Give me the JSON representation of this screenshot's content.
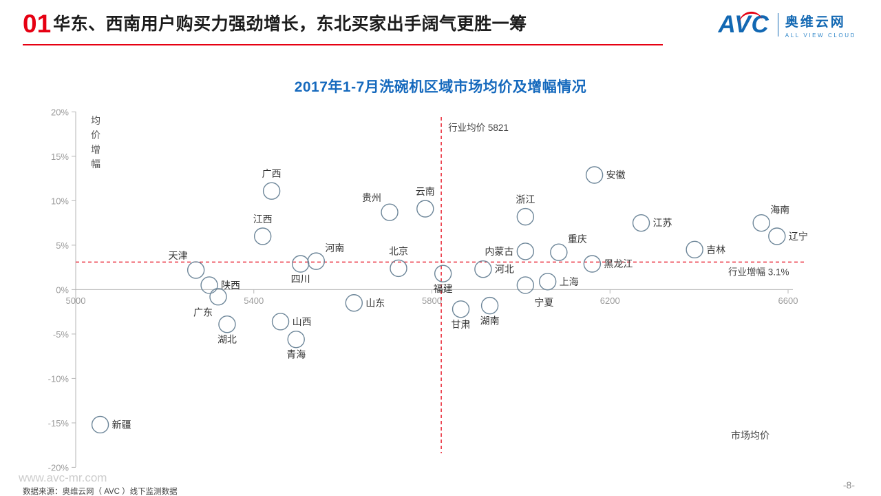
{
  "header": {
    "number": "01",
    "title": "华东、西南用户购买力强劲增长，东北买家出手阔气更胜一筹",
    "accent_color": "#e60012"
  },
  "logo": {
    "avc": "AVC",
    "name": "奥维云网",
    "subtitle": "ALL VIEW CLOUD",
    "color": "#1268b3"
  },
  "chart_title": "2017年1-7月洗碗机区域市场均价及增幅情况",
  "footer": {
    "watermark": "www.avc-mr.com",
    "source": "数据来源：奥维云网（ AVC ）线下监测数据",
    "page": "-8-"
  },
  "chart_data": {
    "type": "scatter",
    "title": "2017年1-7月洗碗机区域市场均价及增幅情况",
    "xlabel": "市场均价",
    "ylabel": "均价增幅",
    "xlim": [
      5000,
      6600
    ],
    "ylim": [
      -20,
      20
    ],
    "x_ticks": [
      5000,
      5400,
      5800,
      6200,
      6600
    ],
    "y_ticks_percent": [
      20,
      15,
      10,
      5,
      0,
      -5,
      -10,
      -15,
      -20
    ],
    "grid": false,
    "point_color": "#6d8699",
    "ref_color": "#e60012",
    "ref_lines": {
      "industry_avg_price": {
        "value": 5821,
        "label": "行业均价 5821"
      },
      "industry_growth": {
        "value": 3.1,
        "label": "行业增幅 3.1%"
      }
    },
    "points": [
      {
        "name": "新疆",
        "price": 5055,
        "growth": -15.2,
        "lp": "right"
      },
      {
        "name": "天津",
        "price": 5270,
        "growth": 2.2,
        "lp": "above-left"
      },
      {
        "name": "陕西",
        "price": 5300,
        "growth": 0.5,
        "lp": "right"
      },
      {
        "name": "广东",
        "price": 5320,
        "growth": -0.8,
        "lp": "below-left"
      },
      {
        "name": "湖北",
        "price": 5340,
        "growth": -3.9,
        "lp": "below"
      },
      {
        "name": "江西",
        "price": 5420,
        "growth": 6.0,
        "lp": "above"
      },
      {
        "name": "广西",
        "price": 5440,
        "growth": 11.1,
        "lp": "above"
      },
      {
        "name": "山西",
        "price": 5460,
        "growth": -3.6,
        "lp": "right"
      },
      {
        "name": "青海",
        "price": 5495,
        "growth": -5.6,
        "lp": "below"
      },
      {
        "name": "四川",
        "price": 5505,
        "growth": 2.9,
        "lp": "below"
      },
      {
        "name": "河南",
        "price": 5540,
        "growth": 3.2,
        "lp": "above-right"
      },
      {
        "name": "山东",
        "price": 5625,
        "growth": -1.5,
        "lp": "right"
      },
      {
        "name": "贵州",
        "price": 5705,
        "growth": 8.7,
        "lp": "above-left"
      },
      {
        "name": "北京",
        "price": 5725,
        "growth": 2.4,
        "lp": "above"
      },
      {
        "name": "云南",
        "price": 5785,
        "growth": 9.1,
        "lp": "above"
      },
      {
        "name": "福建",
        "price": 5825,
        "growth": 1.8,
        "lp": "below"
      },
      {
        "name": "甘肃",
        "price": 5865,
        "growth": -2.2,
        "lp": "below"
      },
      {
        "name": "河北",
        "price": 5915,
        "growth": 2.3,
        "lp": "right"
      },
      {
        "name": "湖南",
        "price": 5930,
        "growth": -1.8,
        "lp": "below"
      },
      {
        "name": "浙江",
        "price": 6010,
        "growth": 8.2,
        "lp": "above"
      },
      {
        "name": "内蒙古",
        "price": 6010,
        "growth": 4.3,
        "lp": "left"
      },
      {
        "name": "宁夏",
        "price": 6010,
        "growth": 0.5,
        "lp": "below-right"
      },
      {
        "name": "上海",
        "price": 6060,
        "growth": 0.9,
        "lp": "right"
      },
      {
        "name": "重庆",
        "price": 6085,
        "growth": 4.2,
        "lp": "above-right"
      },
      {
        "name": "黑龙江",
        "price": 6160,
        "growth": 2.9,
        "lp": "right"
      },
      {
        "name": "安徽",
        "price": 6165,
        "growth": 12.9,
        "lp": "right"
      },
      {
        "name": "江苏",
        "price": 6270,
        "growth": 7.5,
        "lp": "right"
      },
      {
        "name": "吉林",
        "price": 6390,
        "growth": 4.5,
        "lp": "right"
      },
      {
        "name": "海南",
        "price": 6540,
        "growth": 7.5,
        "lp": "above-right"
      },
      {
        "name": "辽宁",
        "price": 6575,
        "growth": 6.0,
        "lp": "right"
      }
    ]
  }
}
